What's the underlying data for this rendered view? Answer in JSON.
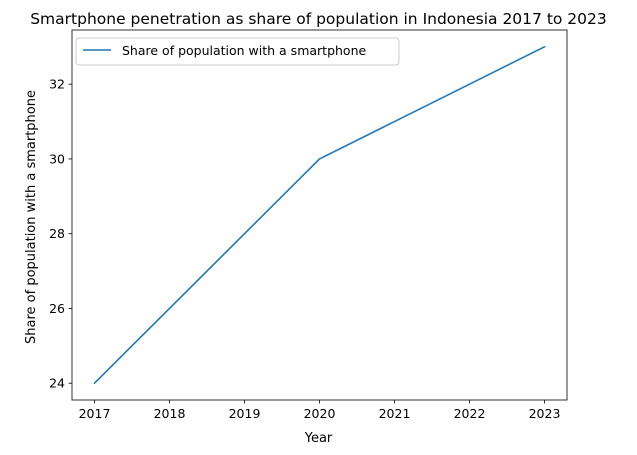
{
  "chart_data": {
    "type": "line",
    "title": "Smartphone penetration as share of population in Indonesia 2017 to 2023",
    "xlabel": "Year",
    "ylabel": "Share of population with a smartphone",
    "x": [
      2017,
      2018,
      2019,
      2020,
      2021,
      2022,
      2023
    ],
    "series": [
      {
        "name": "Share of population with a smartphone",
        "values": [
          24,
          26,
          28,
          30,
          31,
          32,
          33
        ],
        "color": "#1f77b4"
      }
    ],
    "xticks": [
      "2017",
      "2018",
      "2019",
      "2020",
      "2021",
      "2022",
      "2023"
    ],
    "yticks": [
      "24",
      "26",
      "28",
      "30",
      "32"
    ],
    "xlim": [
      2016.7,
      2023.3
    ],
    "ylim": [
      23.55,
      33.45
    ],
    "grid": false,
    "legend_position": "upper left"
  }
}
